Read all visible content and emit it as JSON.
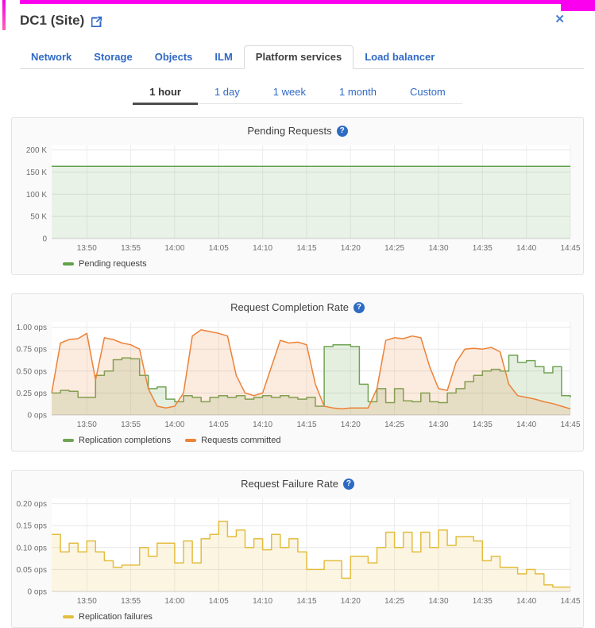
{
  "window": {
    "title": "DC1 (Site)",
    "close_glyph": "✕"
  },
  "icons": {
    "help_glyph": "?"
  },
  "colors": {
    "link_blue": "#3069c6",
    "active_text": "#404040",
    "help_icon_bg": "#2d6bc4",
    "decoration_magenta": "#fb00ef",
    "green_series": "#71a455",
    "orange_series": "#ec8237",
    "yellow_series": "#e4bd3e"
  },
  "tabs": [
    {
      "label": "Network",
      "active": false
    },
    {
      "label": "Storage",
      "active": false
    },
    {
      "label": "Objects",
      "active": false
    },
    {
      "label": "ILM",
      "active": false
    },
    {
      "label": "Platform services",
      "active": true
    },
    {
      "label": "Load balancer",
      "active": false
    }
  ],
  "time_tabs": [
    {
      "label": "1 hour",
      "active": true
    },
    {
      "label": "1 day",
      "active": false
    },
    {
      "label": "1 week",
      "active": false
    },
    {
      "label": "1 month",
      "active": false
    },
    {
      "label": "Custom",
      "active": false
    }
  ],
  "chart_data": [
    {
      "type": "area",
      "title": "Pending Requests",
      "x_start": "13:46",
      "x_end": "14:45",
      "x_step_minutes": 1,
      "x_tick_labels": [
        "13:50",
        "13:55",
        "14:00",
        "14:05",
        "14:10",
        "14:15",
        "14:20",
        "14:25",
        "14:30",
        "14:35",
        "14:40",
        "14:45"
      ],
      "x_tick_index": [
        4,
        9,
        14,
        19,
        24,
        29,
        34,
        39,
        44,
        49,
        54,
        59
      ],
      "ylim": [
        0,
        210000
      ],
      "yticks": [
        {
          "v": 0,
          "label": "0"
        },
        {
          "v": 50000,
          "label": "50 K"
        },
        {
          "v": 100000,
          "label": "100 K"
        },
        {
          "v": 150000,
          "label": "150 K"
        },
        {
          "v": 200000,
          "label": "200 K"
        }
      ],
      "legend_position": "bottom-left",
      "grid": true,
      "series": [
        {
          "name": "Pending requests",
          "color": "#62a04c",
          "fill": "rgba(98,160,76,0.14)",
          "step": false,
          "values": [
            163000,
            163000,
            163000,
            163000,
            163000,
            163000,
            163000,
            163000,
            163000,
            163000,
            163000,
            163000,
            163000,
            163000,
            163000,
            163000,
            163000,
            163000,
            163000,
            163000,
            163000,
            163000,
            163000,
            163000,
            163000,
            163000,
            163000,
            163000,
            163000,
            163000,
            163000,
            163000,
            163000,
            163000,
            163000,
            163000,
            163000,
            163000,
            163000,
            163000,
            163000,
            163000,
            163000,
            163000,
            163000,
            163000,
            163000,
            163000,
            163000,
            163000,
            163000,
            163000,
            163000,
            163000,
            163000,
            163000,
            163000,
            163000,
            163000,
            163000
          ]
        }
      ]
    },
    {
      "type": "area",
      "title": "Request Completion Rate",
      "x_start": "13:46",
      "x_end": "14:45",
      "x_step_minutes": 1,
      "x_tick_labels": [
        "13:50",
        "13:55",
        "14:00",
        "14:05",
        "14:10",
        "14:15",
        "14:20",
        "14:25",
        "14:30",
        "14:35",
        "14:40",
        "14:45"
      ],
      "x_tick_index": [
        4,
        9,
        14,
        19,
        24,
        29,
        34,
        39,
        44,
        49,
        54,
        59
      ],
      "ylim": [
        0,
        1.06
      ],
      "yticks": [
        {
          "v": 0,
          "label": "0 ops"
        },
        {
          "v": 0.25,
          "label": "0.25 ops"
        },
        {
          "v": 0.5,
          "label": "0.50 ops"
        },
        {
          "v": 0.75,
          "label": "0.75 ops"
        },
        {
          "v": 1.0,
          "label": "1.00 ops"
        }
      ],
      "legend_position": "bottom-left",
      "grid": true,
      "series": [
        {
          "name": "Replication completions",
          "color": "#71a455",
          "fill": "rgba(113,164,85,0.18)",
          "step": true,
          "values": [
            0.25,
            0.28,
            0.27,
            0.2,
            0.2,
            0.45,
            0.5,
            0.63,
            0.65,
            0.64,
            0.45,
            0.3,
            0.32,
            0.18,
            0.15,
            0.22,
            0.2,
            0.15,
            0.2,
            0.22,
            0.2,
            0.22,
            0.18,
            0.2,
            0.22,
            0.2,
            0.22,
            0.2,
            0.18,
            0.2,
            0.1,
            0.78,
            0.8,
            0.8,
            0.78,
            0.35,
            0.15,
            0.3,
            0.14,
            0.3,
            0.16,
            0.15,
            0.25,
            0.15,
            0.14,
            0.25,
            0.3,
            0.38,
            0.45,
            0.5,
            0.52,
            0.5,
            0.68,
            0.6,
            0.62,
            0.55,
            0.48,
            0.55,
            0.22,
            0.2
          ]
        },
        {
          "name": "Requests committed",
          "color": "#ec8237",
          "fill": "rgba(236,130,55,0.16)",
          "step": false,
          "values": [
            0.25,
            0.82,
            0.86,
            0.87,
            0.93,
            0.4,
            0.88,
            0.86,
            0.82,
            0.8,
            0.75,
            0.3,
            0.1,
            0.08,
            0.1,
            0.25,
            0.9,
            0.97,
            0.95,
            0.93,
            0.9,
            0.45,
            0.25,
            0.22,
            0.25,
            0.55,
            0.85,
            0.82,
            0.83,
            0.8,
            0.35,
            0.1,
            0.08,
            0.07,
            0.08,
            0.08,
            0.08,
            0.3,
            0.85,
            0.88,
            0.87,
            0.9,
            0.88,
            0.55,
            0.3,
            0.28,
            0.6,
            0.75,
            0.76,
            0.75,
            0.77,
            0.72,
            0.35,
            0.22,
            0.2,
            0.18,
            0.15,
            0.13,
            0.1,
            0.07
          ]
        }
      ]
    },
    {
      "type": "area",
      "title": "Request Failure Rate",
      "x_start": "13:46",
      "x_end": "14:45",
      "x_step_minutes": 1,
      "x_tick_labels": [
        "13:50",
        "13:55",
        "14:00",
        "14:05",
        "14:10",
        "14:15",
        "14:20",
        "14:25",
        "14:30",
        "14:35",
        "14:40",
        "14:45"
      ],
      "x_tick_index": [
        4,
        9,
        14,
        19,
        24,
        29,
        34,
        39,
        44,
        49,
        54,
        59
      ],
      "ylim": [
        0,
        0.212
      ],
      "yticks": [
        {
          "v": 0,
          "label": "0 ops"
        },
        {
          "v": 0.05,
          "label": "0.05 ops"
        },
        {
          "v": 0.1,
          "label": "0.10 ops"
        },
        {
          "v": 0.15,
          "label": "0.15 ops"
        },
        {
          "v": 0.2,
          "label": "0.20 ops"
        }
      ],
      "legend_position": "bottom-left",
      "grid": true,
      "series": [
        {
          "name": "Replication failures",
          "color": "#e4bd3e",
          "fill": "rgba(228,189,62,0.15)",
          "step": true,
          "values": [
            0.13,
            0.09,
            0.11,
            0.09,
            0.115,
            0.09,
            0.07,
            0.055,
            0.06,
            0.06,
            0.1,
            0.08,
            0.11,
            0.11,
            0.065,
            0.115,
            0.065,
            0.12,
            0.13,
            0.16,
            0.125,
            0.14,
            0.1,
            0.12,
            0.095,
            0.13,
            0.1,
            0.12,
            0.09,
            0.05,
            0.05,
            0.07,
            0.07,
            0.03,
            0.08,
            0.08,
            0.065,
            0.1,
            0.135,
            0.1,
            0.135,
            0.09,
            0.135,
            0.1,
            0.14,
            0.105,
            0.125,
            0.125,
            0.115,
            0.07,
            0.08,
            0.055,
            0.055,
            0.04,
            0.05,
            0.04,
            0.015,
            0.01,
            0.01,
            0.01
          ]
        }
      ]
    }
  ]
}
